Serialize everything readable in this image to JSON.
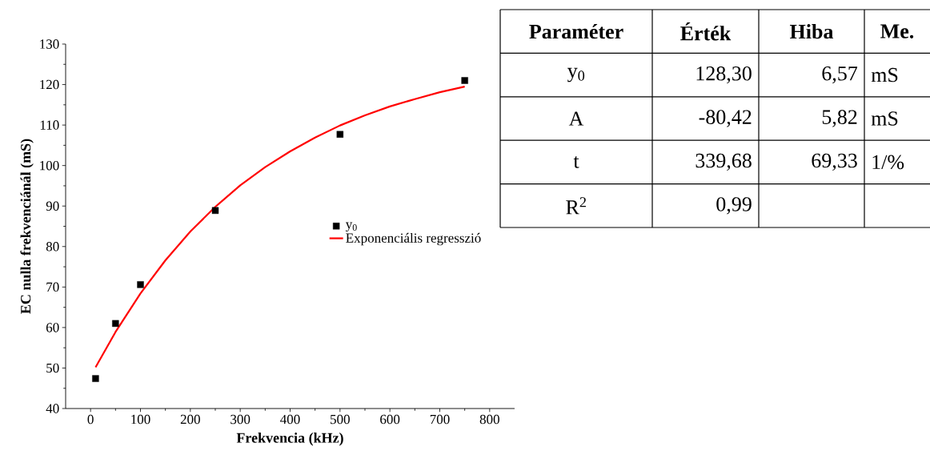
{
  "chart_data": [
    {
      "type": "scatter",
      "xlabel": "Frekvencia (kHz)",
      "ylabel": "EC nulla frekvenciánál (mS)",
      "xlim": [
        -50,
        850
      ],
      "xticks": [
        0,
        100,
        200,
        300,
        400,
        500,
        600,
        700,
        800
      ],
      "ylim": [
        40,
        130
      ],
      "yticks": [
        40,
        50,
        60,
        70,
        80,
        90,
        100,
        110,
        120,
        130
      ],
      "legend": "right",
      "grid": false,
      "series": [
        {
          "name": "y$_{0}$",
          "type": "scatter",
          "marker": "square",
          "color": "#000000",
          "x": [
            10,
            50,
            100,
            250,
            500,
            750
          ],
          "values": [
            47.4,
            61,
            70.6,
            88.9,
            107.7,
            121
          ]
        },
        {
          "name": "Exponenciális regresszió",
          "type": "line",
          "marker": "none",
          "color": "#ff0000",
          "x": [
            10,
            50,
            100,
            150,
            200,
            250,
            300,
            350,
            400,
            450,
            500,
            550,
            600,
            650,
            700,
            750
          ],
          "values": [
            50.2,
            58.9,
            68.4,
            76.6,
            83.7,
            89.8,
            95.1,
            99.6,
            103.5,
            106.9,
            109.9,
            112.4,
            114.6,
            116.4,
            118.1,
            119.5
          ]
        }
      ]
    },
    {
      "type": "other",
      "annotations": [
        "Paraméter",
        "Érték",
        "Hiba",
        "Me.",
        "y$_{0}$",
        "128,30",
        "6,57",
        "mS",
        "A",
        "-80,42",
        "5,82",
        "mS",
        "t",
        "339,68",
        "69,33",
        "1/%",
        "R$^{2}$",
        "0,99"
      ]
    }
  ]
}
